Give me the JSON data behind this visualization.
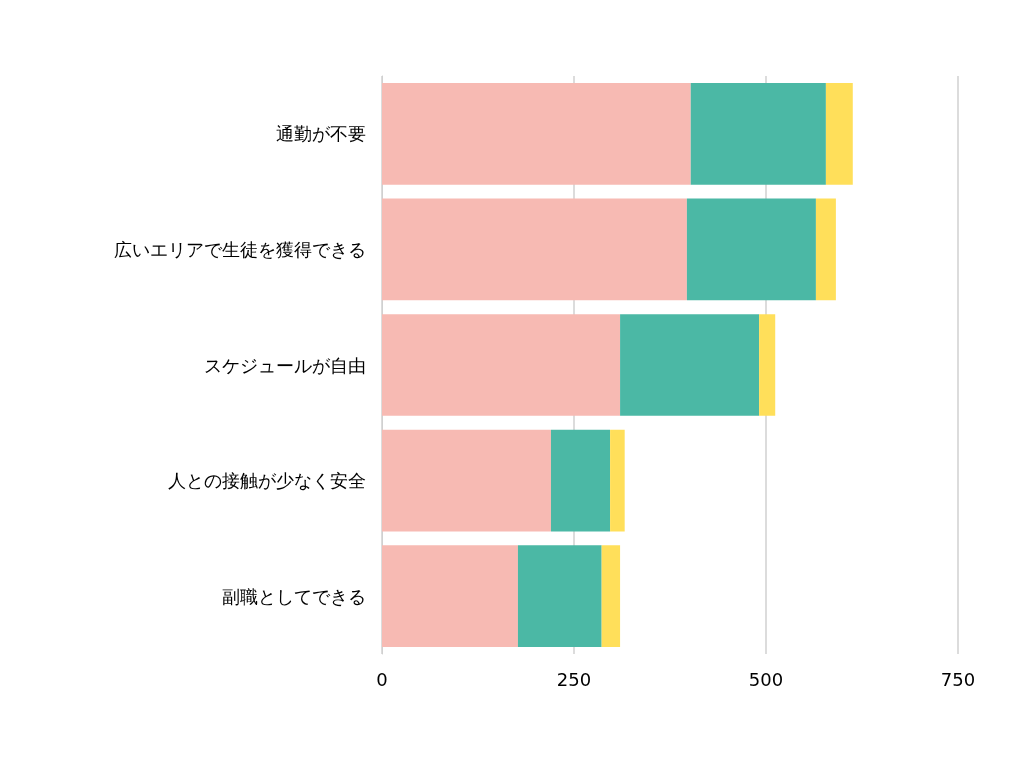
{
  "chart_data": {
    "type": "bar",
    "orientation": "horizontal",
    "stacked": true,
    "grid": "x",
    "categories": [
      "通勤が不要",
      "広いエリアで生徒を獲得できる",
      "スケジュールが自由",
      "人との接触が少なく安全",
      "副職としてできる"
    ],
    "series": [
      {
        "color": "#f7bab3",
        "values": [
          402,
          397,
          310,
          220,
          177
        ]
      },
      {
        "color": "#4bb8a5",
        "values": [
          176,
          168,
          181,
          77,
          109
        ]
      },
      {
        "color": "#ffdf5a",
        "values": [
          35,
          26,
          21,
          19,
          24
        ]
      }
    ],
    "xlim": [
      0,
      750
    ],
    "xticks": [
      0,
      250,
      500,
      750
    ]
  }
}
